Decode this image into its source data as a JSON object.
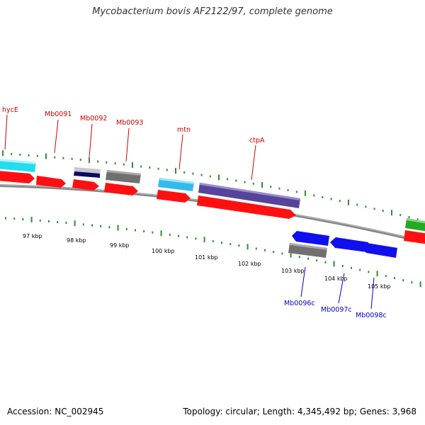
{
  "title": "Mycobacterium bovis AF2122/97, complete genome",
  "footer": {
    "accession": "Accession: NC_002945",
    "topology": "Topology: circular; Length: 4,345,492 bp; Genes: 3,968"
  },
  "colors": {
    "forward_label": "#cc0000",
    "reverse_label": "#0000cc",
    "backbone": "#888888",
    "tick": "#2f8f2f",
    "cds_red": "#ff1010",
    "cyan": "#22ddee",
    "lightblue": "#33bbee",
    "gray": "#707070",
    "silver": "#c8c8c8",
    "navy": "#0a0a66",
    "purple": "#554499",
    "blue": "#1010ee",
    "green": "#22aa22"
  },
  "kbp_labels": [
    "97 kbp",
    "98 kbp",
    "99 kbp",
    "100 kbp",
    "101 kbp",
    "102 kbp",
    "103 kbp",
    "104 kbp",
    "105 kbp"
  ],
  "forward_genes": [
    "hycE",
    "Mb0091",
    "Mb0092",
    "Mb0093",
    "mtn",
    "ctpA"
  ],
  "reverse_genes": [
    "Mb0096c",
    "Mb0097c",
    "Mb0098c"
  ]
}
